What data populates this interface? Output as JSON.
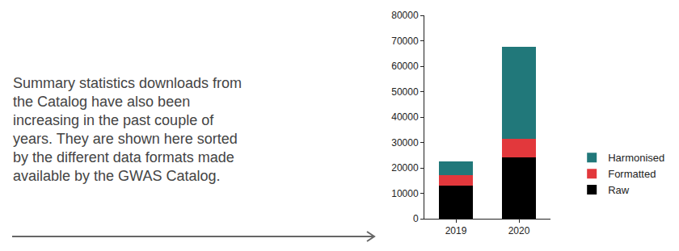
{
  "text_lines": [
    "Summary statistics downloads from",
    "the Catalog have also been",
    "increasing in the past couple of",
    "years. They are shown here sorted",
    "by the different data formats made",
    "available by the GWAS Catalog."
  ],
  "chart_data": {
    "type": "bar",
    "stacked": true,
    "grid": false,
    "legend": "right",
    "categories": [
      "2019",
      "2020"
    ],
    "series": [
      {
        "name": "Raw",
        "color": "#000000",
        "values": [
          13000,
          24000
        ]
      },
      {
        "name": "Formatted",
        "color": "#e2383c",
        "values": [
          4000,
          7500
        ]
      },
      {
        "name": "Harmonised",
        "color": "#21787a",
        "values": [
          5500,
          36000
        ]
      }
    ],
    "ylim": [
      0,
      80000
    ],
    "yticks": [
      0,
      10000,
      20000,
      30000,
      40000,
      50000,
      60000,
      70000,
      80000
    ]
  }
}
